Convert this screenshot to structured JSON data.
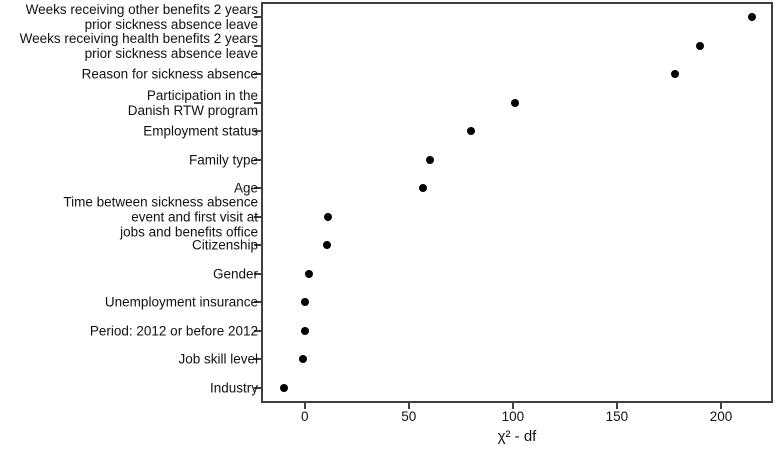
{
  "chart_data": {
    "type": "scatter",
    "subtype": "cleveland-dot-plot",
    "title": "",
    "xlabel": "χ² - df",
    "ylabel": "",
    "xlim": [
      -21,
      225
    ],
    "xtick_values": [
      0,
      50,
      100,
      150,
      200
    ],
    "xtick_labels": [
      "0",
      "50",
      "100",
      "150",
      "200"
    ],
    "grid": false,
    "legend_position": "none",
    "background_color": "#ffffff",
    "axis_color": "#3f3f3f",
    "point_color": "#000000",
    "categories": [
      "Weeks receiving other benefits 2 years\nprior sickness absence leave",
      "Weeks receiving health benefits 2 years\nprior sickness absence leave",
      "Reason for sickness absence",
      "Participation in the\nDanish RTW program",
      "Employment status",
      "Family type",
      "Age",
      "Time between sickness absence\nevent and first visit at\njobs and benefits office",
      "Citizenship",
      "Gender",
      "Unemployment insurance",
      "Period: 2012 or before 2012",
      "Job skill level",
      "Industry"
    ],
    "values": [
      215,
      190,
      178,
      101,
      80,
      60,
      57,
      11,
      10.5,
      2,
      0,
      0,
      -1,
      -10
    ]
  }
}
